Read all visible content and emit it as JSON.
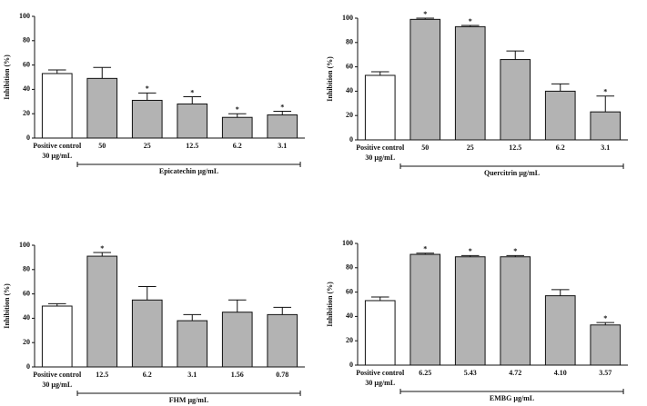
{
  "chart_data": [
    {
      "type": "bar",
      "ylabel": "Inhibition (%)",
      "xlabel": "Epicatechin µg/mL",
      "categories": [
        "Positive control",
        "50",
        "25",
        "12.5",
        "6.2",
        "3.1"
      ],
      "positive_dose": "30 µg/mL",
      "values": [
        53,
        49,
        31,
        28,
        17,
        19
      ],
      "errors": [
        3,
        9,
        6,
        6,
        3,
        3
      ],
      "markers": [
        null,
        null,
        "*",
        "*",
        "*",
        "*"
      ],
      "colors": [
        "#ffffff",
        "#b3b3b3",
        "#b3b3b3",
        "#b3b3b3",
        "#b3b3b3",
        "#b3b3b3"
      ],
      "ylim": [
        0,
        100
      ],
      "yticks": [
        0,
        20,
        40,
        60,
        80,
        100
      ]
    },
    {
      "type": "bar",
      "ylabel": "Inhibition (%)",
      "xlabel": "Quercitrin µg/mL",
      "categories": [
        "Positive control",
        "50",
        "25",
        "12.5",
        "6.2",
        "3.1"
      ],
      "positive_dose": "30 µg/mL",
      "values": [
        53,
        99,
        93,
        66,
        40,
        23
      ],
      "errors": [
        3,
        1,
        1,
        7,
        6,
        13
      ],
      "markers": [
        null,
        "*",
        "*",
        null,
        null,
        "*"
      ],
      "colors": [
        "#ffffff",
        "#b3b3b3",
        "#b3b3b3",
        "#b3b3b3",
        "#b3b3b3",
        "#b3b3b3"
      ],
      "ylim": [
        0,
        100
      ],
      "yticks": [
        0,
        20,
        40,
        60,
        80,
        100
      ]
    },
    {
      "type": "bar",
      "ylabel": "Inhibition (%)",
      "xlabel": "FHM µg/mL",
      "categories": [
        "Positive control",
        "12.5",
        "6.2",
        "3.1",
        "1.56",
        "0.78"
      ],
      "positive_dose": "30 µg/mL",
      "values": [
        50,
        91,
        55,
        38,
        45,
        43
      ],
      "errors": [
        2,
        3,
        11,
        5,
        10,
        6
      ],
      "markers": [
        null,
        "*",
        null,
        null,
        null,
        null
      ],
      "colors": [
        "#ffffff",
        "#b3b3b3",
        "#b3b3b3",
        "#b3b3b3",
        "#b3b3b3",
        "#b3b3b3"
      ],
      "ylim": [
        0,
        100
      ],
      "yticks": [
        0,
        20,
        40,
        60,
        80,
        100
      ]
    },
    {
      "type": "bar",
      "ylabel": "Inhibition (%)",
      "xlabel": "EMBG µg/mL",
      "categories": [
        "Positive control",
        "6.25",
        "5.43",
        "4.72",
        "4.10",
        "3.57"
      ],
      "positive_dose": "30 µg/mL",
      "values": [
        53,
        91,
        89,
        89,
        57,
        33
      ],
      "errors": [
        3,
        1,
        1,
        1,
        5,
        2
      ],
      "markers": [
        null,
        "*",
        "*",
        "*",
        null,
        "*"
      ],
      "colors": [
        "#ffffff",
        "#b3b3b3",
        "#b3b3b3",
        "#b3b3b3",
        "#b3b3b3",
        "#b3b3b3"
      ],
      "ylim": [
        0,
        100
      ],
      "yticks": [
        0,
        20,
        40,
        60,
        80,
        100
      ]
    }
  ]
}
